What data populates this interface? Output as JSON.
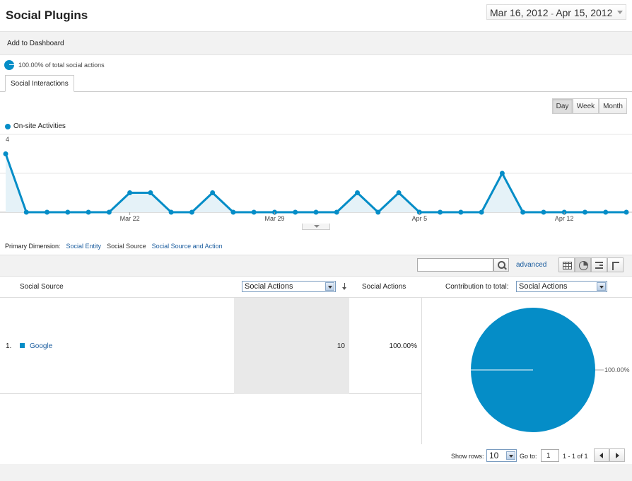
{
  "header": {
    "title": "Social Plugins",
    "date_start": "Mar 16, 2012",
    "date_sep": "-",
    "date_end": "Apr 15, 2012"
  },
  "toolbar": {
    "add_to_dashboard": "Add to Dashboard"
  },
  "segment": {
    "label": "100.00% of total social actions",
    "color": "#058dc7"
  },
  "tabs": [
    {
      "label": "Social Interactions"
    }
  ],
  "granularity": {
    "day": "Day",
    "week": "Week",
    "month": "Month",
    "selected": "Day"
  },
  "chart_data": {
    "type": "area",
    "title": "",
    "series": [
      {
        "name": "On-site Activities",
        "color": "#058dc7",
        "values": [
          3,
          0,
          0,
          0,
          0,
          0,
          1,
          1,
          0,
          0,
          1,
          0,
          0,
          0,
          0,
          0,
          0,
          1,
          0,
          1,
          0,
          0,
          0,
          0,
          2,
          0,
          0,
          0,
          0,
          0,
          0
        ]
      }
    ],
    "x_ticks": [
      {
        "index": 6,
        "label": "Mar 22"
      },
      {
        "index": 13,
        "label": "Mar 29"
      },
      {
        "index": 20,
        "label": "Apr 5"
      },
      {
        "index": 27,
        "label": "Apr 12"
      }
    ],
    "y_ticks": [
      2,
      4
    ],
    "ylim": [
      0,
      4
    ],
    "grid": true
  },
  "primary_dimension": {
    "label": "Primary Dimension:",
    "options": [
      "Social Entity",
      "Social Source",
      "Social Source and Action"
    ],
    "selected": "Social Source"
  },
  "filter": {
    "search_placeholder": "",
    "advanced": "advanced"
  },
  "table": {
    "col_source": "Social Source",
    "metric_select": "Social Actions",
    "col_metric": "Social Actions",
    "contribution_label": "Contribution to total:",
    "contribution_select": "Social Actions",
    "rows": [
      {
        "index": "1.",
        "source": "Google",
        "value": "10",
        "percent": "100.00%"
      }
    ]
  },
  "pie": {
    "slices": [
      {
        "label": "Google",
        "value": 100.0,
        "label_text": "100.00%"
      }
    ],
    "color": "#058dc7"
  },
  "pagination": {
    "show_rows_label": "Show rows:",
    "rows_value": "10",
    "goto_label": "Go to:",
    "goto_value": "1",
    "range": "1 - 1 of 1"
  }
}
